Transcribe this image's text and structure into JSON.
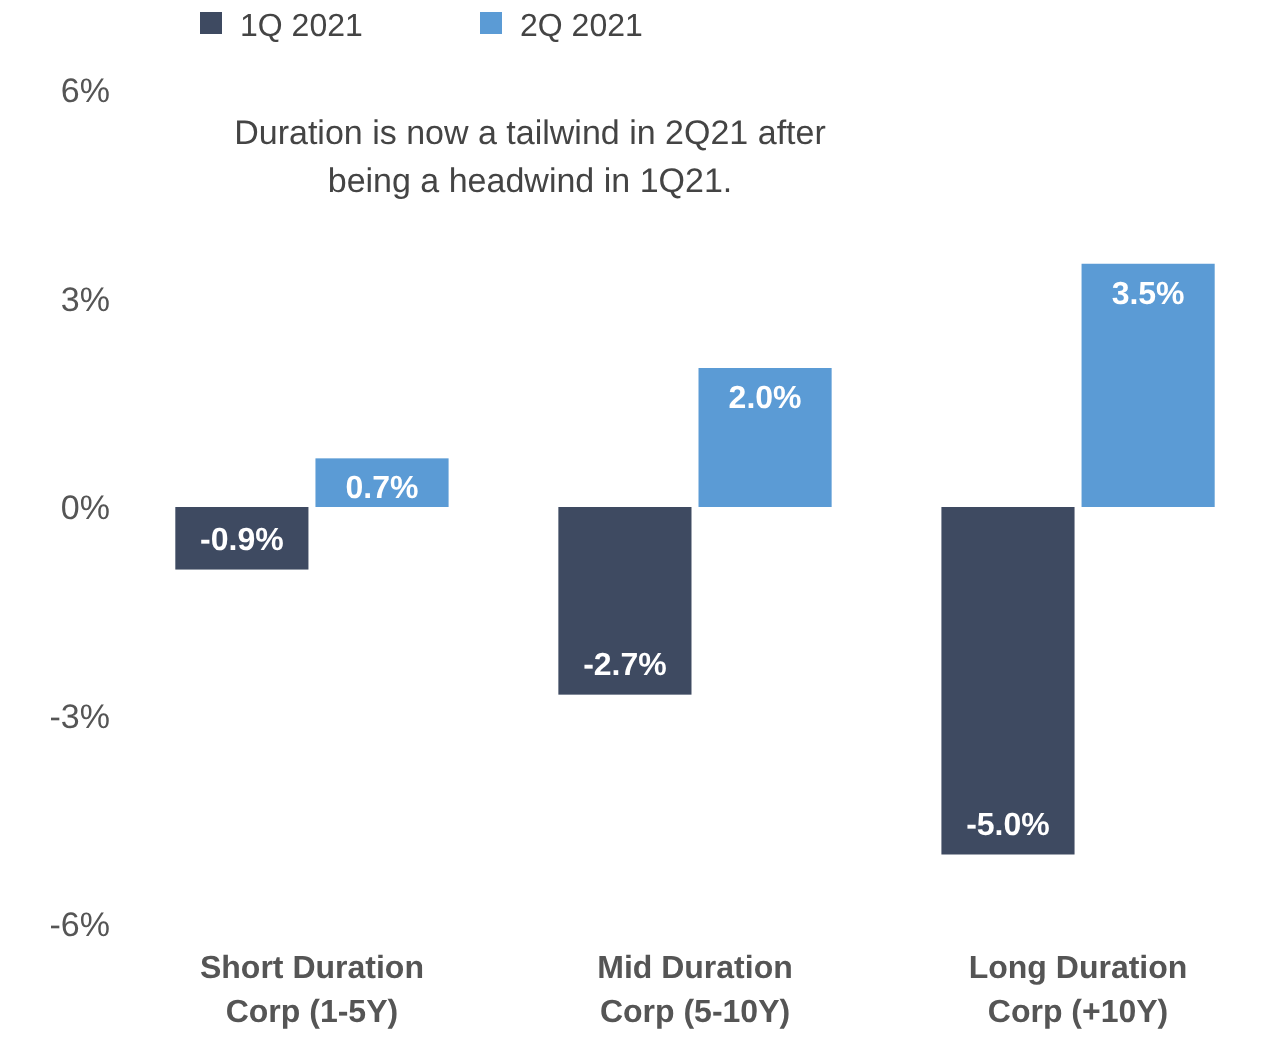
{
  "chart_data": {
    "type": "bar",
    "categories": [
      "Short Duration Corp (1-5Y)",
      "Mid Duration Corp (5-10Y)",
      "Long Duration Corp (+10Y)"
    ],
    "series": [
      {
        "name": "1Q 2021",
        "color": "#3e4a61",
        "values": [
          -0.9,
          -2.7,
          -5.0
        ],
        "value_labels": [
          "-0.9%",
          "-2.7%",
          "-5.0%"
        ]
      },
      {
        "name": "2Q 2021",
        "color": "#5b9bd5",
        "values": [
          0.7,
          2.0,
          3.5
        ],
        "value_labels": [
          "0.7%",
          "2.0%",
          "3.5%"
        ]
      }
    ],
    "ylim": [
      -6,
      6
    ],
    "yticks": [
      {
        "value": -6,
        "label": "-6%"
      },
      {
        "value": -3,
        "label": "-3%"
      },
      {
        "value": 0,
        "label": "0%"
      },
      {
        "value": 3,
        "label": "3%"
      },
      {
        "value": 6,
        "label": "6%"
      }
    ],
    "annotations": [
      "Duration is now a tailwind in 2Q21 after being a headwind in 1Q21."
    ],
    "legend": "top",
    "grid": false
  }
}
